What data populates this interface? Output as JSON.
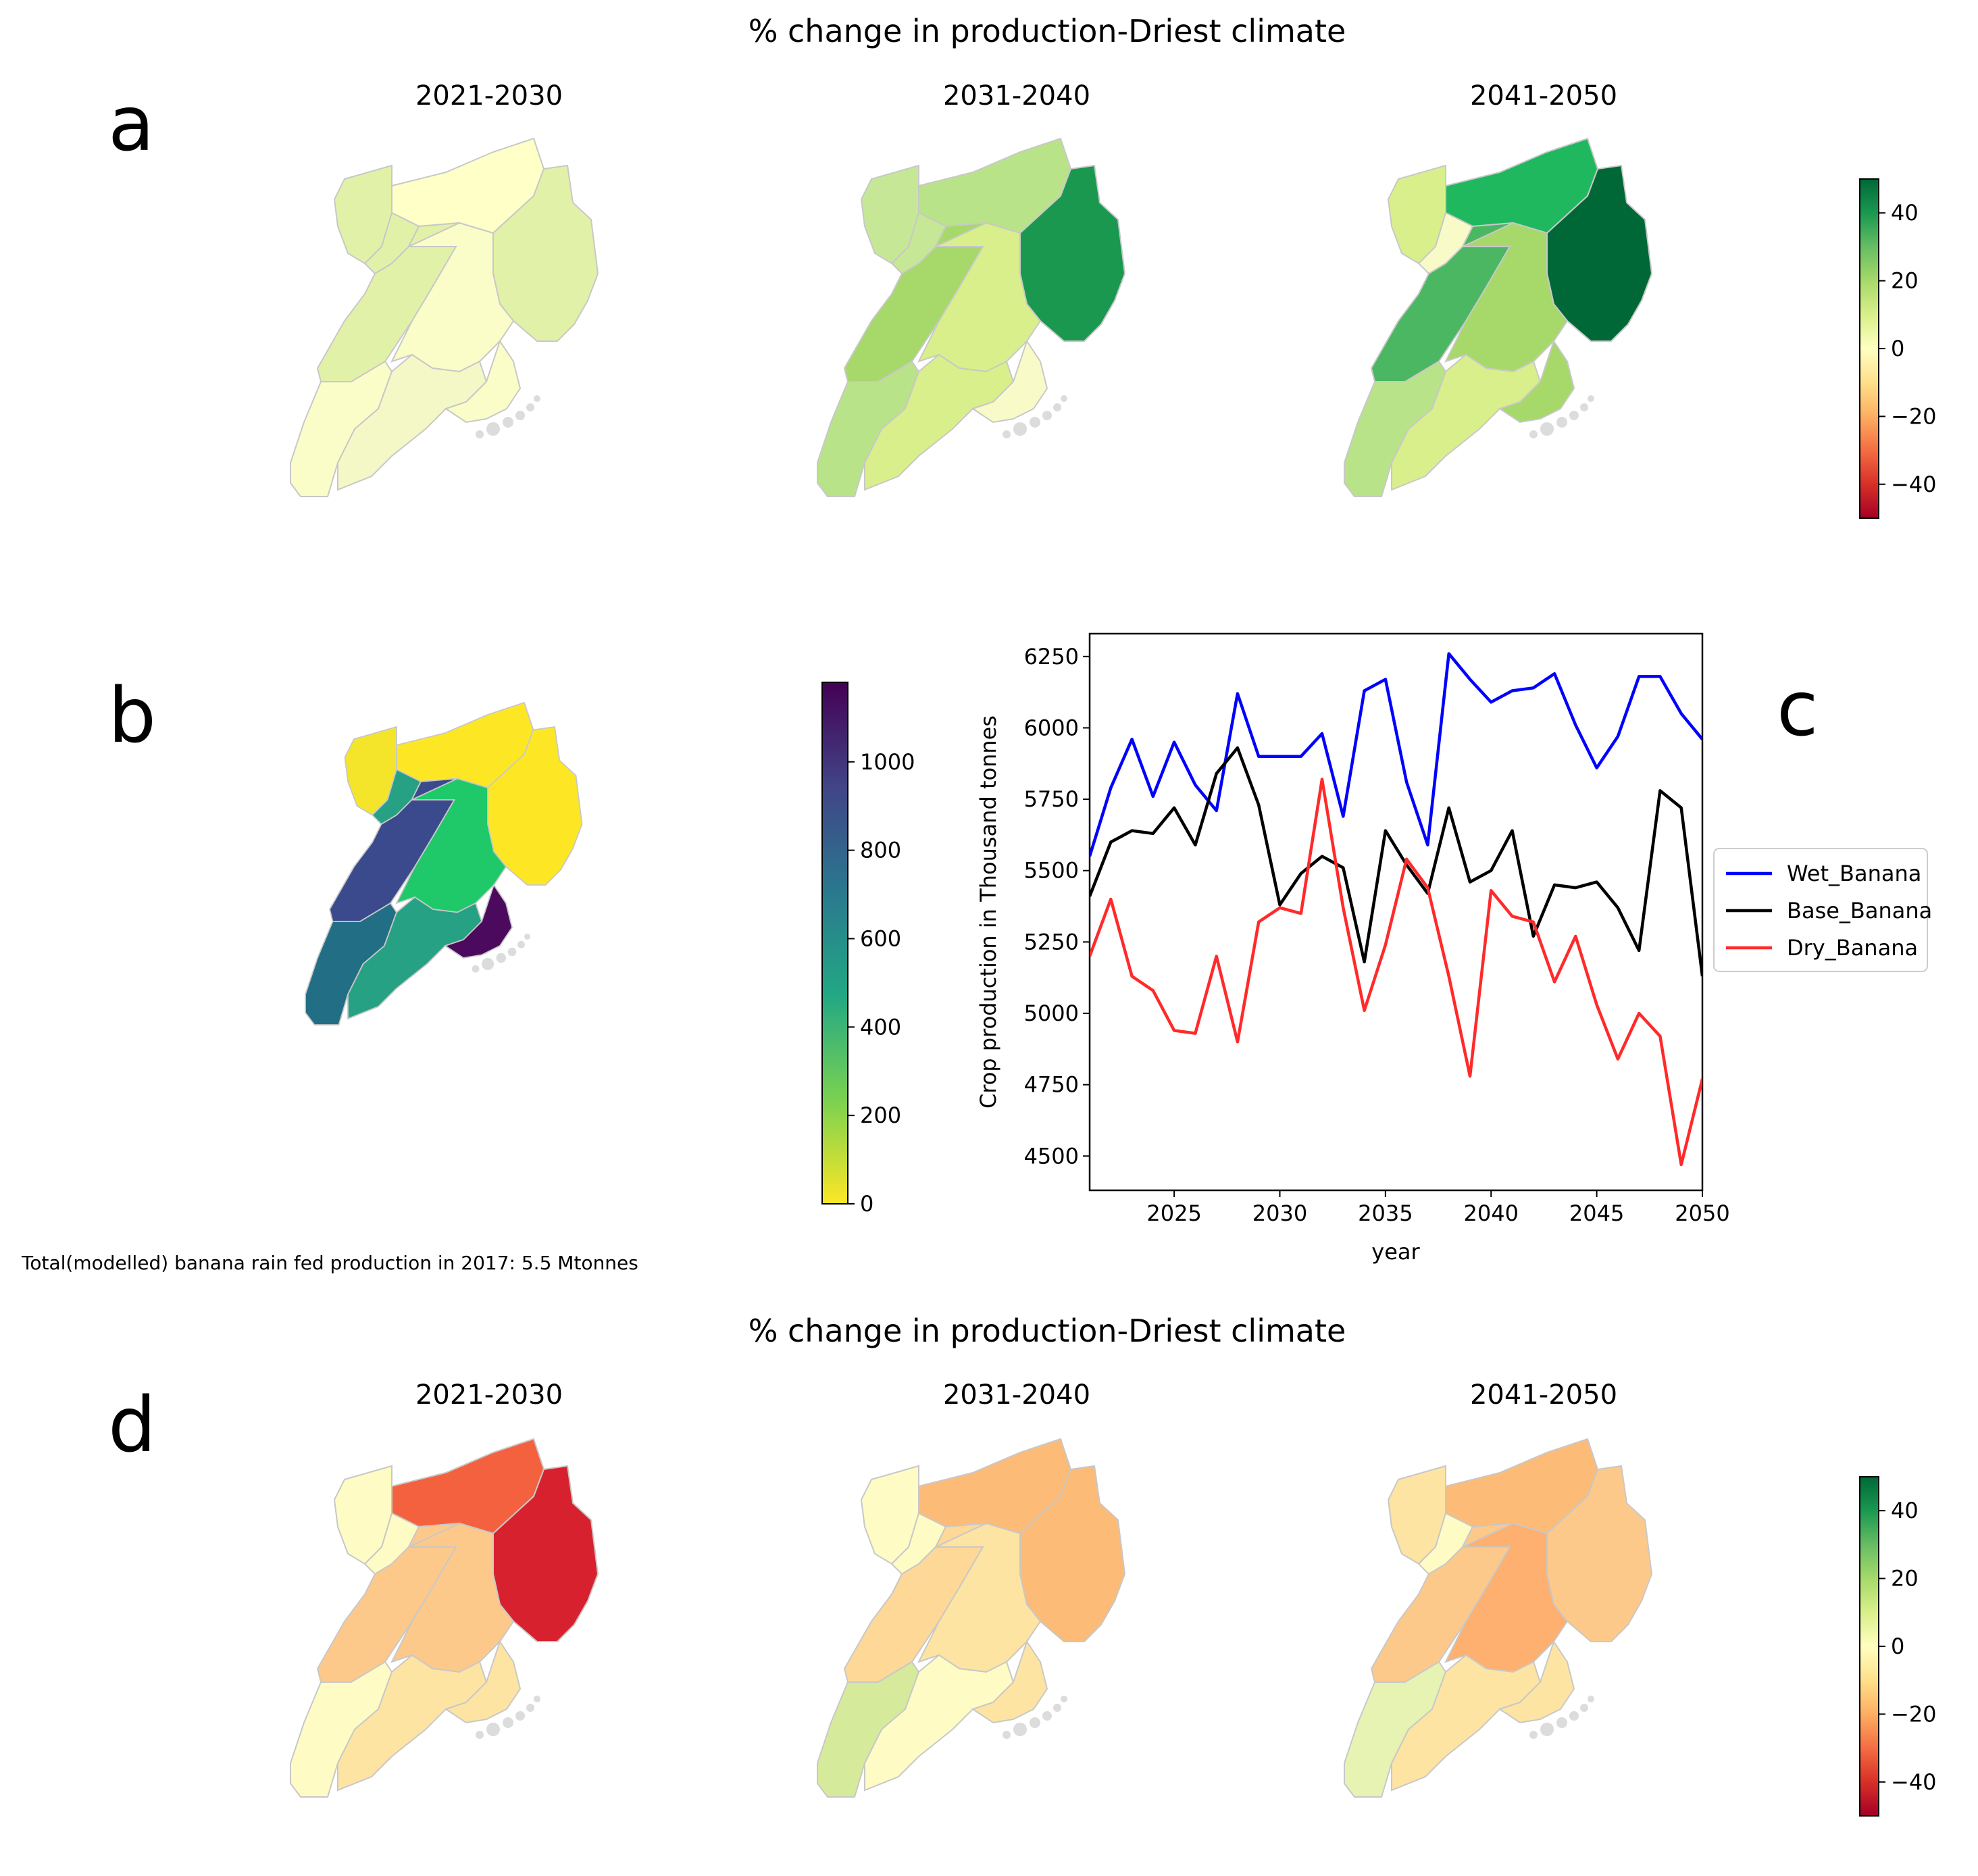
{
  "figure": {
    "title_top": "% change in production-Driest climate",
    "title_bottom": "% change in production-Driest climate",
    "panel_labels": {
      "a": "a",
      "b": "b",
      "c": "c",
      "d": "d"
    },
    "periods": [
      "2021-2030",
      "2031-2040",
      "2041-2050"
    ],
    "note": "Total(modelled) banana rain fed production in 2017: 5.5 Mtonnes"
  },
  "colorbar_change": {
    "ticks": [
      "40",
      "20",
      "0",
      "−20",
      "−40"
    ],
    "min": -50,
    "max": 50,
    "tick_values": [
      40,
      20,
      0,
      -20,
      -40
    ],
    "colors": [
      "#a50026",
      "#d73027",
      "#f46d43",
      "#fdae61",
      "#fee08b",
      "#ffffbf",
      "#d9ef8b",
      "#a6d96a",
      "#66bd63",
      "#1a9850",
      "#006837"
    ]
  },
  "colorbar_production": {
    "ticks": [
      "1000",
      "800",
      "600",
      "400",
      "200",
      "0"
    ],
    "tick_values": [
      1000,
      800,
      600,
      400,
      200,
      0
    ],
    "min": 0,
    "max": 1180,
    "colors": [
      "#fde725",
      "#7ad151",
      "#22a884",
      "#2a788e",
      "#414487",
      "#440154"
    ]
  },
  "maps": {
    "a": [
      {
        "period": "2021-2030",
        "fills": {
          "north": "#ffffc8",
          "northwest": "#e2f1a8",
          "east": "#e2f1a8",
          "center": "#fbfdc8",
          "west": "#e2f1a8",
          "southwest": "#fbfdc8",
          "south": "#f4f8c6",
          "lake": "#fbfdc8",
          "nw_small": "#e2f1a8"
        }
      },
      {
        "period": "2031-2040",
        "fills": {
          "north": "#b9e388",
          "northwest": "#c6e896",
          "east": "#1a9850",
          "center": "#d9ef8b",
          "west": "#a6d96a",
          "southwest": "#b9e388",
          "south": "#d9ef8b",
          "lake": "#f8fbc8",
          "nw_small": "#c6e896"
        }
      },
      {
        "period": "2041-2050",
        "fills": {
          "north": "#1fb85e",
          "northwest": "#d9ef8b",
          "east": "#006837",
          "center": "#a6d96a",
          "west": "#4cb762",
          "southwest": "#b9e388",
          "south": "#d9ef8b",
          "lake": "#a6d96a",
          "nw_small": "#f8fbc8"
        }
      }
    ],
    "b": {
      "fills": {
        "north": "#fde725",
        "northwest": "#f5e52a",
        "east": "#fde725",
        "center": "#1fc96a",
        "west": "#3b4a8c",
        "southwest": "#226f85",
        "south": "#27a183",
        "lake": "#4b0a5e",
        "nw_small": "#27a183"
      }
    },
    "d": [
      {
        "period": "2021-2030",
        "fills": {
          "north": "#f4613f",
          "northwest": "#fefcc4",
          "east": "#d7212e",
          "center": "#fdc98a",
          "west": "#fdc98a",
          "southwest": "#fefcc4",
          "south": "#fee4a3",
          "lake": "#fee4a3",
          "nw_small": "#fefcc4"
        }
      },
      {
        "period": "2031-2040",
        "fills": {
          "north": "#fdbb78",
          "northwest": "#fefcc4",
          "east": "#fdbb78",
          "center": "#fee4a3",
          "west": "#fed896",
          "southwest": "#d6ea9c",
          "south": "#fefcc4",
          "lake": "#fee4a3",
          "nw_small": "#fefcc4"
        }
      },
      {
        "period": "2041-2050",
        "fills": {
          "north": "#fdbb78",
          "northwest": "#fee4a3",
          "east": "#fdc98a",
          "center": "#fdb06f",
          "west": "#fdc98a",
          "southwest": "#e7f3b2",
          "south": "#fee4a3",
          "lake": "#fee4a3",
          "nw_small": "#fefcc4"
        }
      }
    ]
  },
  "chart_data": {
    "type": "line",
    "title": "",
    "xlabel": "year",
    "ylabel": "Crop production in Thousand tonnes",
    "xlim": [
      2021,
      2050
    ],
    "ylim": [
      4380,
      6330
    ],
    "xticks": [
      2025,
      2030,
      2035,
      2040,
      2045,
      2050
    ],
    "yticks": [
      4500,
      4750,
      5000,
      5250,
      5500,
      5750,
      6000,
      6250
    ],
    "x": [
      2021,
      2022,
      2023,
      2024,
      2025,
      2026,
      2027,
      2028,
      2029,
      2030,
      2031,
      2032,
      2033,
      2034,
      2035,
      2036,
      2037,
      2038,
      2039,
      2040,
      2041,
      2042,
      2043,
      2044,
      2045,
      2046,
      2047,
      2048,
      2049,
      2050
    ],
    "legend_position": "right",
    "series": [
      {
        "name": "Wet_Banana",
        "color": "#0000ff",
        "values": [
          5550,
          5790,
          5960,
          5760,
          5950,
          5800,
          5710,
          6120,
          5900,
          5900,
          5900,
          5980,
          5690,
          6130,
          6170,
          5810,
          5590,
          6260,
          6170,
          6090,
          6130,
          6140,
          6190,
          6010,
          5860,
          5970,
          6180,
          6180,
          6050,
          5960
        ]
      },
      {
        "name": "Base_Banana",
        "color": "#000000",
        "values": [
          5410,
          5600,
          5640,
          5630,
          5720,
          5590,
          5840,
          5930,
          5730,
          5380,
          5490,
          5550,
          5510,
          5180,
          5640,
          5520,
          5420,
          5720,
          5460,
          5500,
          5640,
          5270,
          5450,
          5440,
          5460,
          5370,
          5220,
          5780,
          5720,
          5130
        ]
      },
      {
        "name": "Dry_Banana",
        "color": "#ff2a2a",
        "values": [
          5200,
          5400,
          5130,
          5080,
          4940,
          4930,
          5200,
          4900,
          5320,
          5370,
          5350,
          5820,
          5370,
          5010,
          5240,
          5540,
          5440,
          5130,
          4780,
          5430,
          5340,
          5320,
          5110,
          5270,
          5030,
          4840,
          5000,
          4920,
          4470,
          4770
        ]
      }
    ]
  }
}
